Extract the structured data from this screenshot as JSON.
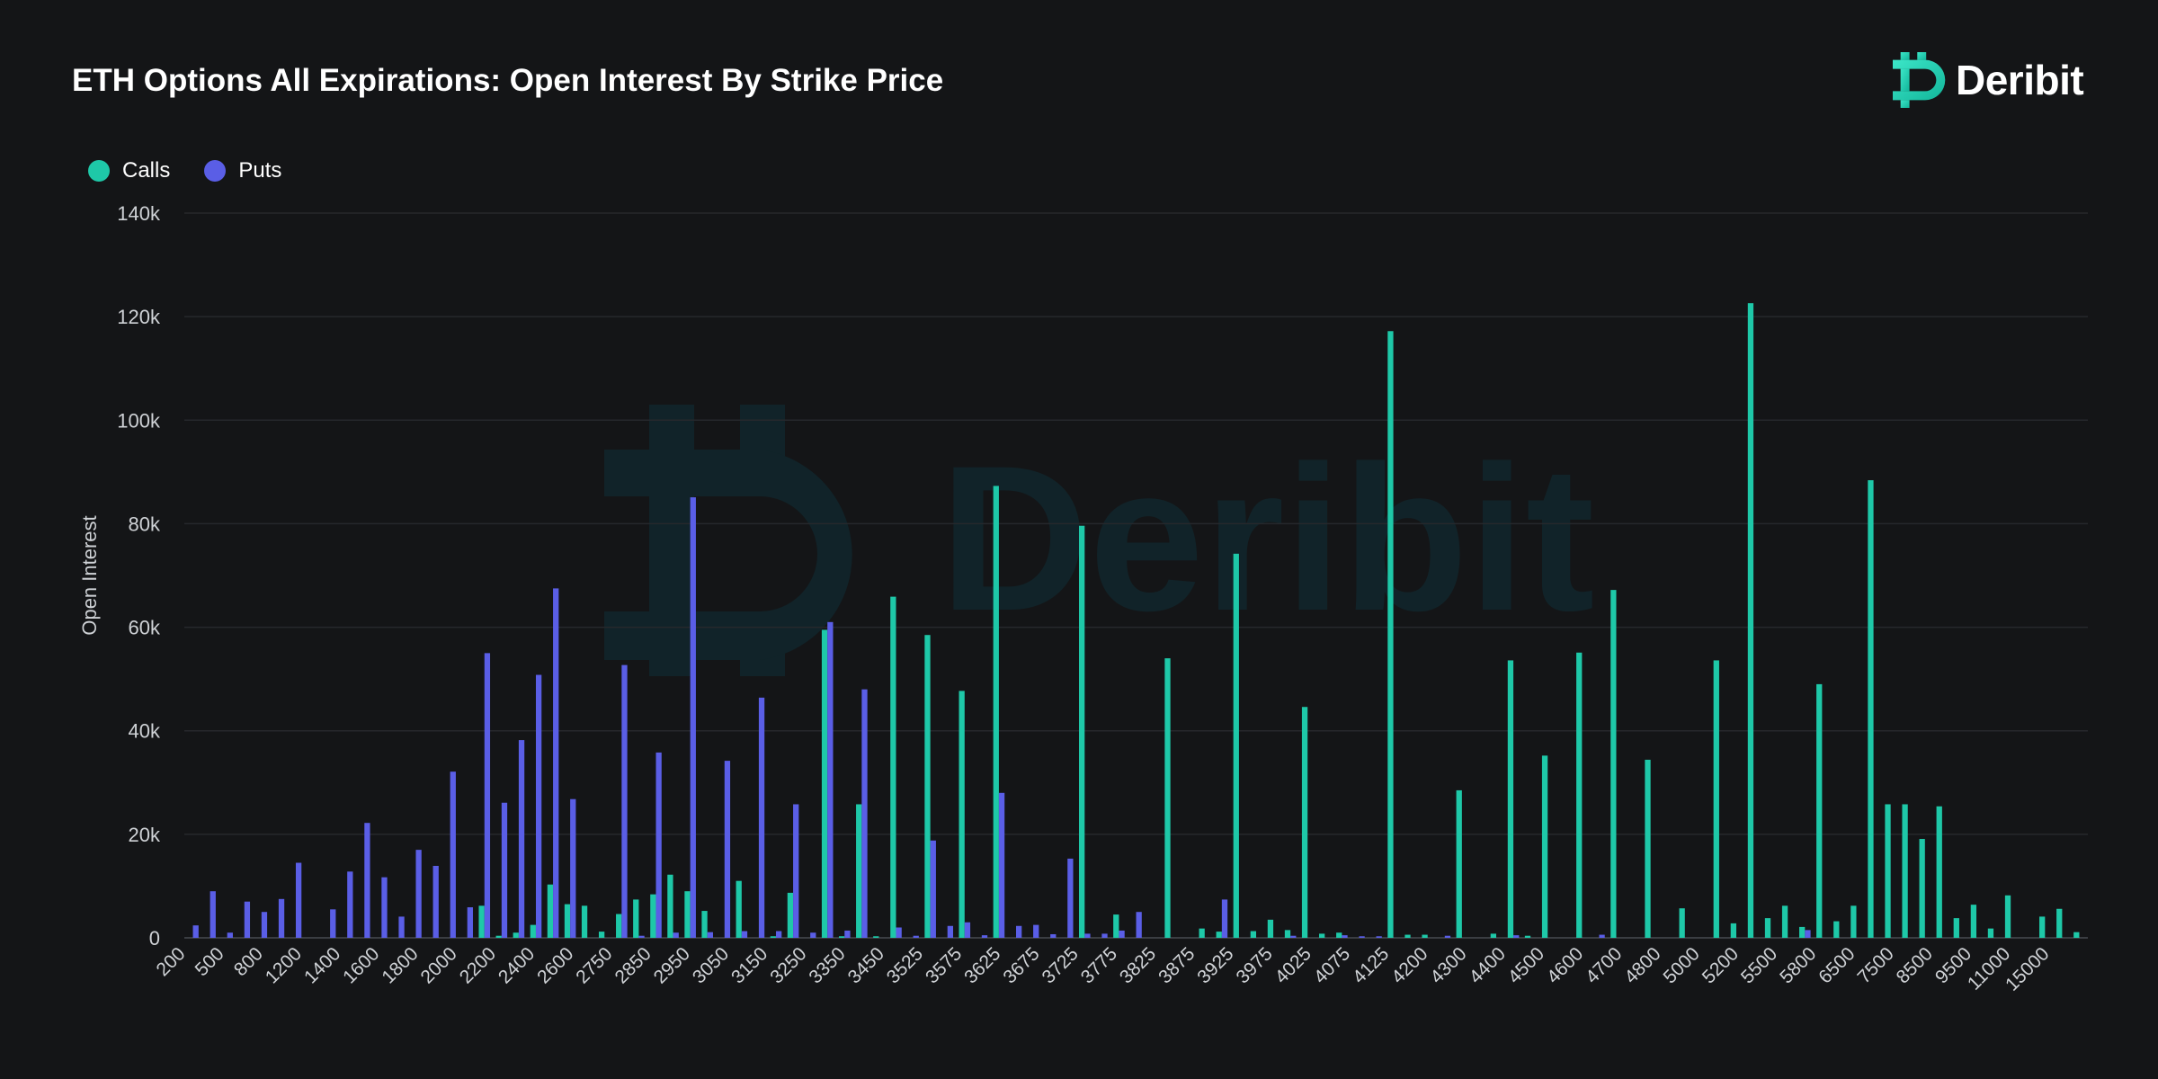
{
  "header": {
    "title": "ETH Options All Expirations: Open Interest By Strike Price"
  },
  "brand": {
    "name": "Deribit",
    "icon": "deribit-logo-icon",
    "watermark": "Deribit"
  },
  "colors": {
    "calls": "#1ec8a8",
    "puts": "#5a5ee6",
    "background": "#141517",
    "grid": "#26282c",
    "watermark": "#102a33"
  },
  "chart_data": {
    "type": "bar",
    "title": "ETH Options All Expirations: Open Interest By Strike Price",
    "xlabel": "",
    "ylabel": "Open Interest",
    "ylim": [
      0,
      140000
    ],
    "yticks": [
      "0",
      "20k",
      "40k",
      "60k",
      "80k",
      "100k",
      "120k",
      "140k"
    ],
    "grid": true,
    "legend": "top-left",
    "x_tick_labels": [
      "200",
      "500",
      "800",
      "1200",
      "1400",
      "1600",
      "1800",
      "2000",
      "2200",
      "2400",
      "2600",
      "2750",
      "2850",
      "2950",
      "3050",
      "3150",
      "3250",
      "3350",
      "3450",
      "3525",
      "3575",
      "3625",
      "3675",
      "3725",
      "3775",
      "3825",
      "3875",
      "3925",
      "3975",
      "4025",
      "4075",
      "4125",
      "4200",
      "4300",
      "4400",
      "4500",
      "4600",
      "4700",
      "4800",
      "5000",
      "5200",
      "5500",
      "5800",
      "6500",
      "7500",
      "8500",
      "9500",
      "11000",
      "15000"
    ],
    "series": [
      {
        "name": "Calls",
        "values": [
          0,
          0,
          0,
          0,
          0,
          0,
          0,
          0,
          0,
          0,
          0,
          0,
          0,
          0,
          0,
          0,
          0,
          6200,
          400,
          1000,
          2500,
          10300,
          6500,
          6200,
          1200,
          4600,
          7400,
          8400,
          12200,
          9000,
          5200,
          0,
          11000,
          0,
          300,
          8700,
          0,
          59500,
          300,
          25800,
          300,
          65900,
          0,
          58500,
          0,
          47700,
          0,
          87300,
          0,
          0,
          0,
          0,
          79600,
          0,
          4500,
          0,
          0,
          54000,
          0,
          1800,
          1200,
          74200,
          1300,
          3500,
          1500,
          44600,
          800,
          1000,
          0,
          0,
          117200,
          600,
          600,
          0,
          28500,
          0,
          800,
          53600,
          400,
          35200,
          0,
          55100,
          0,
          67200,
          0,
          34400,
          0,
          5700,
          0,
          53600,
          2800,
          122600,
          3800,
          6200,
          2100,
          49000,
          3200,
          6200,
          88400,
          25800,
          25800,
          19100,
          25400,
          3800,
          6400,
          1800,
          8200,
          0,
          4100,
          5600,
          1100
        ]
      },
      {
        "name": "Puts",
        "values": [
          2400,
          9000,
          1000,
          7000,
          5000,
          7500,
          14500,
          0,
          5500,
          12800,
          22200,
          11700,
          4100,
          17000,
          13900,
          32100,
          5900,
          55000,
          26100,
          38200,
          50800,
          67500,
          26800,
          0,
          0,
          52700,
          400,
          35800,
          1000,
          85100,
          1100,
          34200,
          1300,
          46400,
          1300,
          25800,
          1000,
          61000,
          1400,
          48000,
          0,
          2000,
          400,
          18800,
          2300,
          3000,
          500,
          28000,
          2300,
          2500,
          700,
          15300,
          800,
          800,
          1400,
          5000,
          0,
          0,
          0,
          0,
          7400,
          0,
          0,
          0,
          400,
          0,
          0,
          500,
          300,
          300,
          0,
          0,
          0,
          400,
          0,
          0,
          0,
          500,
          0,
          0,
          0,
          0,
          600,
          0,
          0,
          0,
          0,
          0,
          0,
          0,
          0,
          0,
          0,
          0,
          1500,
          0,
          0,
          0,
          0,
          0,
          0,
          0,
          0,
          0,
          0,
          0,
          0,
          0,
          0
        ]
      }
    ]
  }
}
